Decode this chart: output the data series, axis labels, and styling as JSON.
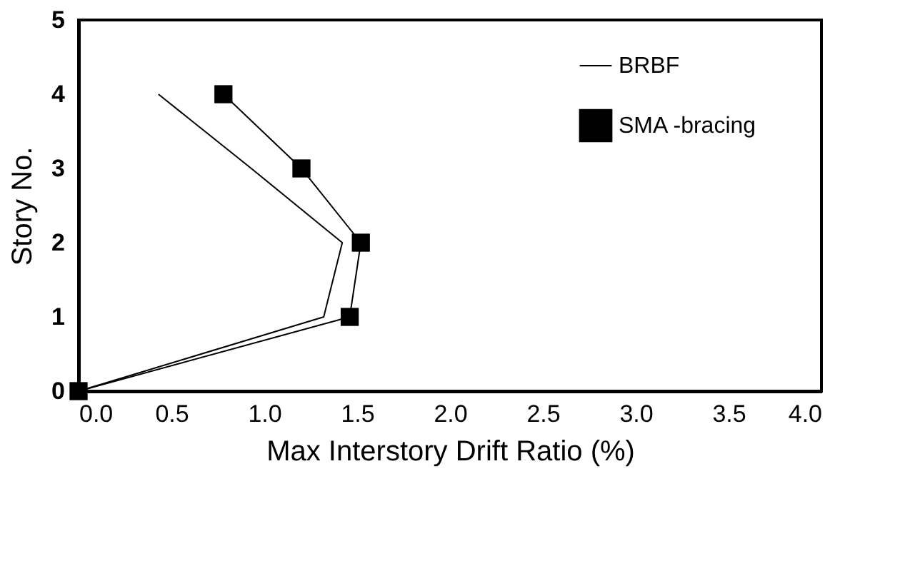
{
  "chart_data": {
    "type": "line",
    "xlabel": "Max Interstory Drift Ratio (%)",
    "ylabel": "Story No.",
    "xlim": [
      0,
      4
    ],
    "xticks": [
      {
        "value": 0,
        "label": "0.0"
      },
      {
        "value": 0.5,
        "label": "0.5"
      },
      {
        "value": 1,
        "label": "1.0"
      },
      {
        "value": 1.5,
        "label": "1.5"
      },
      {
        "value": 2,
        "label": "2.0"
      },
      {
        "value": 2.5,
        "label": "2.5"
      },
      {
        "value": 3,
        "label": "3.0"
      },
      {
        "value": 3.5,
        "label": "3.5"
      },
      {
        "value": 4,
        "label": "4.0"
      }
    ],
    "ylim": [
      0,
      5
    ],
    "yticks": [
      0,
      1,
      2,
      3,
      4,
      5
    ],
    "grid": false,
    "legend": "top right",
    "series": [
      {
        "name": "BRBF",
        "color": "#000000",
        "marker": "none",
        "x": [
          0,
          1.32,
          1.42,
          0.93,
          0.43
        ],
        "values": [
          0,
          1,
          2,
          3,
          4
        ]
      },
      {
        "name": "SMA -bracing",
        "color": "#000000",
        "marker": "square",
        "x": [
          0,
          1.46,
          1.52,
          1.2,
          0.78
        ],
        "values": [
          0,
          1,
          2,
          3,
          4
        ]
      }
    ]
  }
}
